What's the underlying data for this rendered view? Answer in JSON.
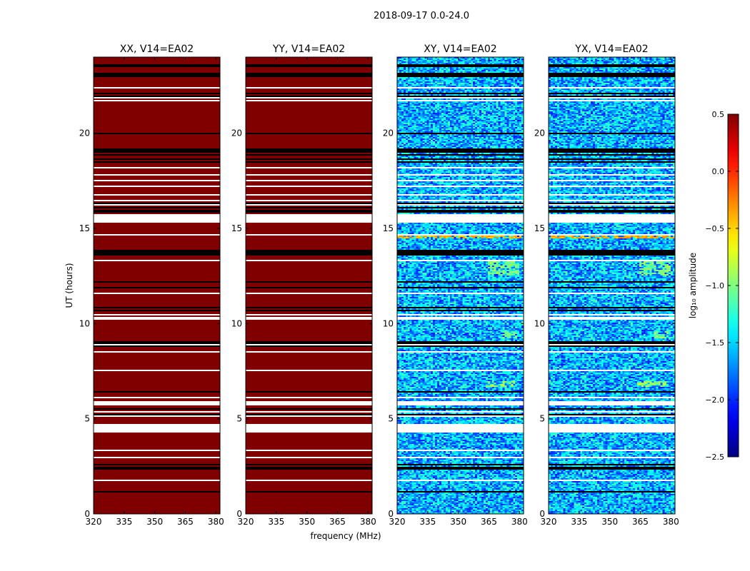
{
  "chart_data": {
    "type": "heatmap",
    "title": "2018-09-17 0.0-24.0",
    "xlabel": "frequency (MHz)",
    "ylabel": "UT (hours)",
    "xlim": [
      320,
      382
    ],
    "ylim": [
      0,
      24
    ],
    "xticks": [
      "320",
      "335",
      "350",
      "365",
      "380"
    ],
    "xtick_values": [
      320,
      335,
      350,
      365,
      380
    ],
    "yticks": [
      "0",
      "5",
      "10",
      "15",
      "20"
    ],
    "ytick_values": [
      0,
      5,
      10,
      15,
      20
    ],
    "colormap": "jet",
    "colorbar": {
      "label": "log₁₀ amplitude",
      "range": [
        -2.5,
        0.5
      ],
      "ticks": [
        "0.5",
        "0.0",
        "−0.5",
        "−1.0",
        "−1.5",
        "−2.0",
        "−2.5"
      ],
      "tick_values": [
        0.5,
        0.0,
        -0.5,
        -1.0,
        -1.5,
        -2.0,
        -2.5
      ]
    },
    "panels": [
      {
        "name": "XX, V14=EA02",
        "mode": "saturated",
        "typical_log10_amplitude": 0.5
      },
      {
        "name": "YY, V14=EA02",
        "mode": "saturated",
        "typical_log10_amplitude": 0.5
      },
      {
        "name": "XY, V14=EA02",
        "mode": "noise",
        "typical_log10_amplitude": -1.6
      },
      {
        "name": "YX, V14=EA02",
        "mode": "noise",
        "typical_log10_amplitude": -1.6
      }
    ],
    "flagged_intervals_hours": [
      [
        4.3,
        4.75
      ],
      [
        5.72,
        5.92
      ],
      [
        10.18,
        10.32
      ],
      [
        15.28,
        15.72
      ],
      [
        0.12,
        0.17
      ],
      [
        1.55,
        1.6
      ],
      [
        1.75,
        1.8
      ],
      [
        2.95,
        3.0
      ],
      [
        3.3,
        3.35
      ],
      [
        5.1,
        5.15
      ],
      [
        5.35,
        5.4
      ],
      [
        6.1,
        6.15
      ],
      [
        6.5,
        6.55
      ],
      [
        7.25,
        7.3
      ],
      [
        7.5,
        7.55
      ],
      [
        8.5,
        8.55
      ],
      [
        8.85,
        8.9
      ],
      [
        10.45,
        10.5
      ],
      [
        11.55,
        11.6
      ],
      [
        13.3,
        13.36
      ],
      [
        13.55,
        13.6
      ],
      [
        14.65,
        14.7
      ],
      [
        16.2,
        16.25
      ],
      [
        16.45,
        16.5
      ],
      [
        16.75,
        16.8
      ],
      [
        17.0,
        17.05
      ],
      [
        17.18,
        17.25
      ],
      [
        17.5,
        17.55
      ],
      [
        17.8,
        17.85
      ],
      [
        18.15,
        18.2
      ],
      [
        18.35,
        18.4
      ],
      [
        20.75,
        20.8
      ],
      [
        21.7,
        21.75
      ],
      [
        21.85,
        21.9
      ],
      [
        22.35,
        22.4
      ],
      [
        22.55,
        22.6
      ],
      [
        23.3,
        23.35
      ]
    ],
    "black_lines_hours": [
      1.18,
      2.6,
      2.4,
      5.2,
      5.5,
      6.4,
      8.8,
      9.0,
      10.7,
      10.85,
      11.9,
      12.2,
      13.65,
      13.72,
      13.85,
      15.9,
      16.1,
      16.3,
      18.5,
      18.65,
      18.85,
      19.05,
      19.15,
      20.0,
      21.95,
      22.1,
      23.0,
      23.1,
      23.55
    ],
    "bright_regions": [
      {
        "t": [
          12.5,
          13.3
        ],
        "f": [
          364,
          380
        ],
        "log10_amplitude": -1.0
      },
      {
        "t": [
          9.2,
          9.6
        ],
        "f": [
          372,
          379
        ],
        "log10_amplitude": -1.0
      },
      {
        "t": [
          6.7,
          6.95
        ],
        "f": [
          363,
          378
        ],
        "log10_amplitude": -0.9
      },
      {
        "t": [
          14.5,
          14.6
        ],
        "f": [
          320,
          382
        ],
        "log10_amplitude": -0.4
      }
    ]
  }
}
